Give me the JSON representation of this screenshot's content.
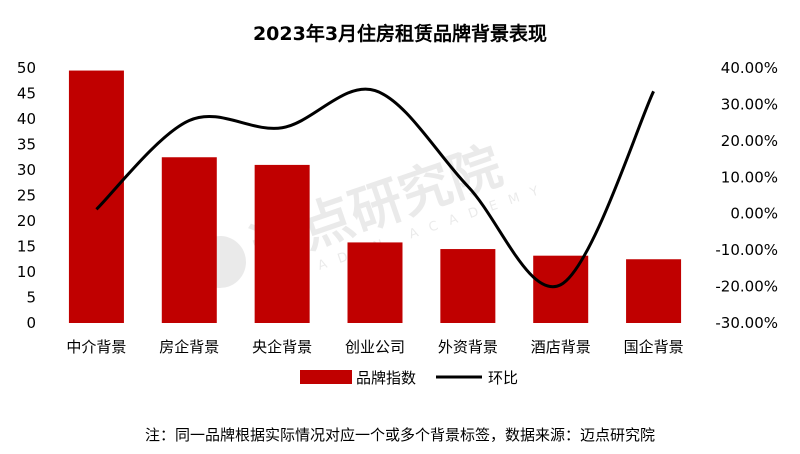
{
  "chart_data": {
    "type": "bar",
    "title": "2023年3月住房租赁品牌背景表现",
    "categories": [
      "中介背景",
      "房企背景",
      "央企背景",
      "创业公司",
      "外资背景",
      "酒店背景",
      "国企背景"
    ],
    "series": [
      {
        "name": "品牌指数",
        "type": "bar",
        "axis": "left",
        "color": "#C00000",
        "values": [
          49.5,
          32.5,
          31.0,
          15.8,
          14.5,
          13.2,
          12.5
        ]
      },
      {
        "name": "环比",
        "type": "line",
        "axis": "right",
        "color": "#000000",
        "values": [
          0.012,
          0.256,
          0.236,
          0.338,
          0.075,
          -0.195,
          0.336
        ]
      }
    ],
    "y_left": {
      "min": 0,
      "max": 50,
      "step": 5,
      "ticks": [
        "0",
        "5",
        "10",
        "15",
        "20",
        "25",
        "30",
        "35",
        "40",
        "45",
        "50"
      ]
    },
    "y_right": {
      "min": -0.3,
      "max": 0.4,
      "step": 0.1,
      "ticks": [
        "-30.00%",
        "-20.00%",
        "-10.00%",
        "0.00%",
        "10.00%",
        "20.00%",
        "30.00%",
        "40.00%"
      ]
    },
    "grid": false,
    "legend_position": "bottom"
  },
  "note": "注：同一品牌根据实际情况对应一个或多个背景标签，数据来源：迈点研究院",
  "watermark": {
    "text": "迈点研究院",
    "subtext": "MEADIN ACADEMY"
  }
}
